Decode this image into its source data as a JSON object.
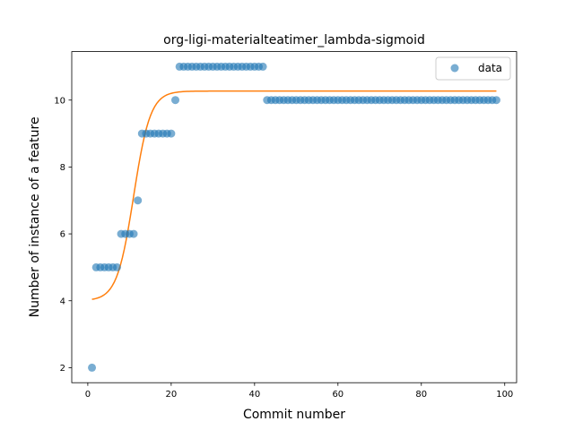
{
  "chart_data": {
    "type": "scatter",
    "title": "org-ligi-materialteatimer_lambda-sigmoid",
    "xlabel": "Commit number",
    "ylabel": "Number of instance of a feature",
    "xlim": [
      -3.85,
      102.85
    ],
    "ylim": [
      1.55,
      11.45
    ],
    "xticks": [
      0,
      20,
      40,
      60,
      80,
      100
    ],
    "yticks": [
      2,
      4,
      6,
      8,
      10
    ],
    "grid": false,
    "legend": {
      "placement": "top-right",
      "entries": [
        "data"
      ]
    },
    "colors": {
      "data": "#1f77b4",
      "fit": "#ff7f0e"
    },
    "series": [
      {
        "name": "data",
        "kind": "scatter",
        "x": [
          1,
          2,
          3,
          4,
          5,
          6,
          7,
          8,
          9,
          10,
          11,
          12,
          13,
          14,
          15,
          16,
          17,
          18,
          19,
          20,
          21,
          22,
          23,
          24,
          25,
          26,
          27,
          28,
          29,
          30,
          31,
          32,
          33,
          34,
          35,
          36,
          37,
          38,
          39,
          40,
          41,
          42,
          43,
          44,
          45,
          46,
          47,
          48,
          49,
          50,
          51,
          52,
          53,
          54,
          55,
          56,
          57,
          58,
          59,
          60,
          61,
          62,
          63,
          64,
          65,
          66,
          67,
          68,
          69,
          70,
          71,
          72,
          73,
          74,
          75,
          76,
          77,
          78,
          79,
          80,
          81,
          82,
          83,
          84,
          85,
          86,
          87,
          88,
          89,
          90,
          91,
          92,
          93,
          94,
          95,
          96,
          97,
          98
        ],
        "y": [
          2,
          5,
          5,
          5,
          5,
          5,
          5,
          6,
          6,
          6,
          6,
          7,
          9,
          9,
          9,
          9,
          9,
          9,
          9,
          9,
          10,
          11,
          11,
          11,
          11,
          11,
          11,
          11,
          11,
          11,
          11,
          11,
          11,
          11,
          11,
          11,
          11,
          11,
          11,
          11,
          11,
          11,
          10,
          10,
          10,
          10,
          10,
          10,
          10,
          10,
          10,
          10,
          10,
          10,
          10,
          10,
          10,
          10,
          10,
          10,
          10,
          10,
          10,
          10,
          10,
          10,
          10,
          10,
          10,
          10,
          10,
          10,
          10,
          10,
          10,
          10,
          10,
          10,
          10,
          10,
          10,
          10,
          10,
          10,
          10,
          10,
          10,
          10,
          10,
          10,
          10,
          10,
          10,
          10,
          10,
          10,
          10,
          10
        ]
      },
      {
        "kind": "line",
        "fit": {
          "model": "sigmoid",
          "lower": 4.0,
          "upper": 10.27,
          "midpoint": 11.0,
          "rate": 0.5,
          "x_range": [
            1,
            98
          ]
        }
      }
    ]
  }
}
